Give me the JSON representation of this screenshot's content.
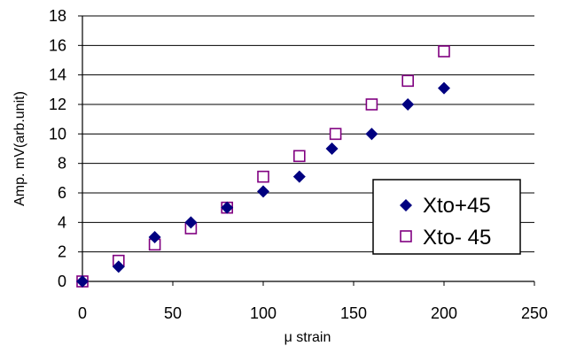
{
  "chart_data": {
    "type": "scatter",
    "xlabel": "μ strain",
    "ylabel": "Amp. mV(arb.unit)",
    "xlim": [
      0,
      250
    ],
    "ylim": [
      0,
      18
    ],
    "x_ticks": [
      "0",
      "50",
      "100",
      "150",
      "200",
      "250"
    ],
    "y_ticks": [
      "0",
      "2",
      "4",
      "6",
      "8",
      "10",
      "12",
      "14",
      "16",
      "18"
    ],
    "grid": "horizontal",
    "legend_position": "bottom-right",
    "series": [
      {
        "name": "Xto+45",
        "marker": "diamond",
        "color": "#000080",
        "x": [
          0,
          20,
          40,
          60,
          80,
          100,
          120,
          138,
          160,
          180,
          200
        ],
        "y": [
          0,
          1.0,
          3.0,
          4.0,
          5.0,
          6.1,
          7.1,
          9.0,
          10.0,
          12.0,
          13.1
        ]
      },
      {
        "name": "Xto- 45",
        "marker": "square",
        "color": "#800080",
        "x": [
          0,
          20,
          40,
          60,
          80,
          100,
          120,
          140,
          160,
          180,
          200
        ],
        "y": [
          0,
          1.4,
          2.5,
          3.6,
          5.0,
          7.1,
          8.5,
          10.0,
          12.0,
          13.6,
          15.6
        ]
      }
    ]
  }
}
